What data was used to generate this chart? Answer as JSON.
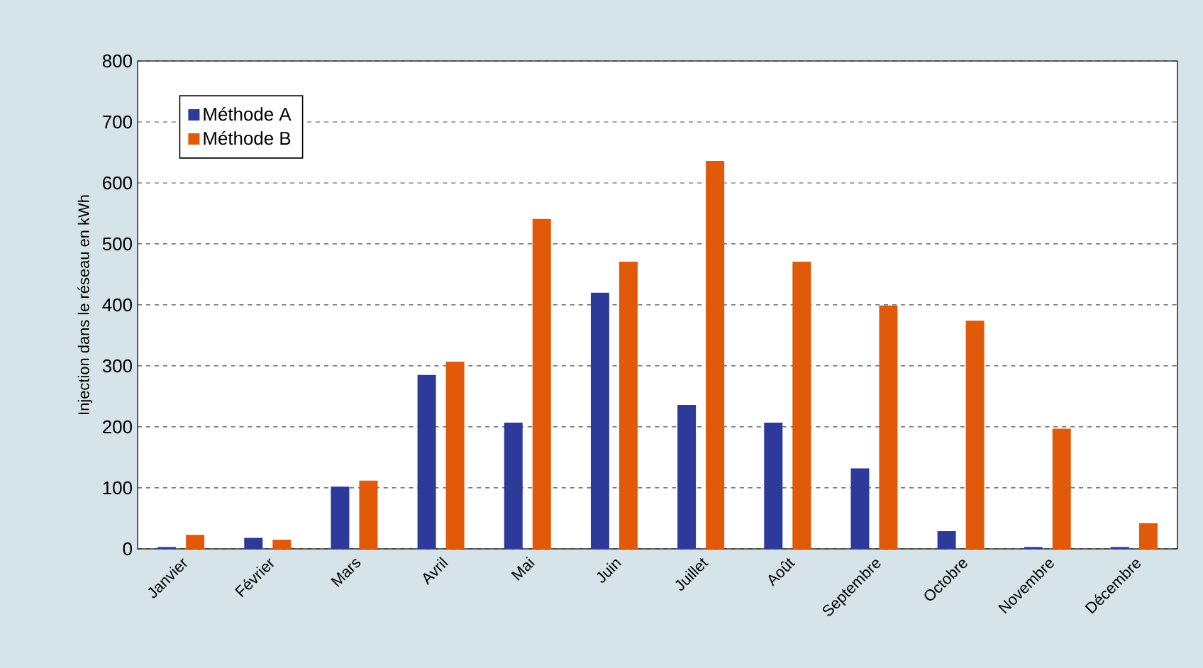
{
  "chart_data": {
    "type": "bar",
    "ylabel": "Injection dans le réseau en kWh",
    "categories": [
      "Janvier",
      "Février",
      "Mars",
      "Avril",
      "Mai",
      "Juin",
      "Juillet",
      "Août",
      "Septembre",
      "Octobre",
      "Novembre",
      "Décembre"
    ],
    "series": [
      {
        "name": "Méthode A",
        "color": "#2e3a9a",
        "values": [
          3,
          18,
          102,
          285,
          207,
          420,
          236,
          207,
          132,
          29,
          3,
          3
        ]
      },
      {
        "name": "Méthode B",
        "color": "#e05a0a",
        "values": [
          23,
          15,
          112,
          307,
          541,
          471,
          636,
          471,
          399,
          374,
          197,
          42
        ]
      }
    ],
    "ylim": [
      0,
      800
    ],
    "yticks": [
      0,
      100,
      200,
      300,
      400,
      500,
      600,
      700,
      800
    ],
    "grid": "y",
    "legend": "top left"
  }
}
